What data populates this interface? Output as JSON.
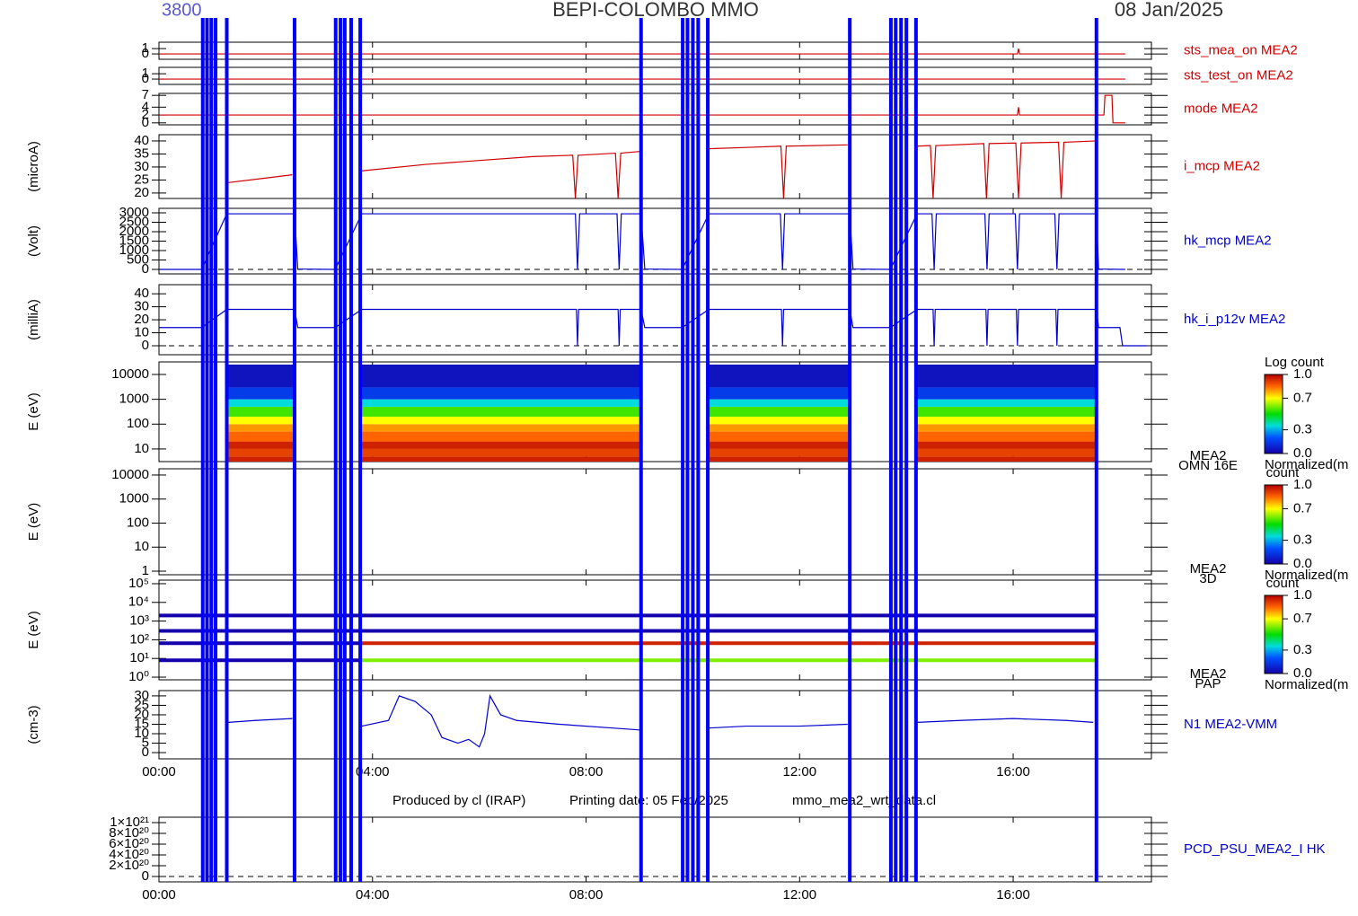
{
  "header": {
    "id": "3800",
    "title": "BEPI-COLOMBO MMO",
    "date": "08 Jan/2025"
  },
  "footer": [
    "Produced by cl (IRAP)",
    "Printing date: 05 Feb/2025",
    "mmo_mea2_wrt_data.cl"
  ],
  "time_axis": {
    "xlim": [
      0,
      18.59
    ],
    "xticks": [
      {
        "value": 0,
        "label": "00:00"
      },
      {
        "value": 4,
        "label": "04:00"
      },
      {
        "value": 8,
        "label": "08:00"
      },
      {
        "value": 12,
        "label": "12:00"
      },
      {
        "value": 16,
        "label": "16:00"
      }
    ]
  },
  "events": {
    "color": "#0000ff",
    "x": [
      0.82,
      0.9,
      0.98,
      1.06,
      1.27,
      2.54,
      3.31,
      3.4,
      3.48,
      3.6,
      3.77,
      9.03,
      9.81,
      9.9,
      10.0,
      10.1,
      10.28,
      12.94,
      13.71,
      13.8,
      13.9,
      14.0,
      14.18,
      17.56
    ]
  },
  "chart_data": [
    {
      "type": "line",
      "label": "sts_mea_on MEA2",
      "color": "#d00000",
      "ylim": [
        -1,
        2.2
      ],
      "yticks": [
        0,
        1
      ],
      "x": [
        0,
        16.08,
        16.1,
        16.12,
        18.1
      ],
      "values": [
        0,
        0,
        1,
        0,
        0
      ]
    },
    {
      "type": "line",
      "label": "sts_test_on MEA2",
      "color": "#d00000",
      "ylim": [
        -1,
        2.2
      ],
      "yticks": [
        0,
        1
      ],
      "x": [
        0,
        18.1
      ],
      "values": [
        0,
        0
      ]
    },
    {
      "type": "line",
      "label": "mode MEA2",
      "color": "#d00000",
      "ylim": [
        -0.5,
        7.5
      ],
      "yticks": [
        0,
        2,
        4,
        7
      ],
      "x": [
        0,
        16.08,
        16.1,
        16.12,
        17.7,
        17.72,
        17.85,
        17.87,
        18.1
      ],
      "values": [
        2,
        2,
        4,
        2,
        2,
        7,
        7,
        0,
        0
      ]
    },
    {
      "type": "line",
      "ylabel": "(microA)",
      "label": "i_mcp MEA2",
      "color": "#d00000",
      "ylim": [
        17.9,
        42.4
      ],
      "yticks": [
        20,
        25,
        30,
        35,
        40
      ],
      "x": [
        1.3,
        1.9,
        2.5,
        2.6,
        3.8,
        5,
        6,
        7,
        7.75,
        7.8,
        7.85,
        8.55,
        8.6,
        8.65,
        9.03,
        9.1,
        10.3,
        11,
        11.65,
        11.7,
        11.75,
        12.9,
        13.0,
        14.2,
        14.45,
        14.5,
        14.55,
        15.45,
        15.5,
        15.55,
        16.05,
        16.1,
        16.15,
        16.85,
        16.9,
        16.95,
        17.55
      ],
      "values": [
        24,
        25.5,
        27,
        null,
        28.5,
        31,
        32.5,
        34,
        34.5,
        18,
        34.5,
        35.3,
        18,
        35.3,
        36,
        null,
        37,
        37.5,
        38,
        18,
        38,
        38.5,
        null,
        38,
        38.2,
        18,
        38.2,
        39,
        18,
        39,
        39.2,
        18,
        39.2,
        39.5,
        18,
        39.5,
        40
      ]
    },
    {
      "type": "line",
      "ylabel": "(Volt)",
      "label": "hk_mcp MEA2",
      "color": "#0000cc",
      "zero_line": true,
      "ylim": [
        -238,
        3238
      ],
      "yticks": [
        0,
        500,
        1000,
        1500,
        2000,
        2500,
        3000
      ],
      "x": [
        0,
        0.8,
        1.27,
        2.54,
        2.6,
        3.3,
        3.8,
        7.8,
        7.84,
        7.88,
        8.58,
        8.62,
        8.66,
        9.03,
        9.1,
        9.8,
        10.3,
        11.64,
        11.68,
        11.72,
        12.94,
        13.0,
        13.7,
        14.2,
        14.48,
        14.52,
        14.56,
        15.47,
        15.51,
        15.55,
        16.04,
        16.08,
        16.12,
        16.78,
        16.82,
        16.86,
        17.56,
        17.6,
        18.1
      ],
      "values": [
        0,
        0,
        2950,
        2950,
        20,
        0,
        2950,
        2950,
        0,
        2950,
        2950,
        0,
        2950,
        2950,
        20,
        0,
        2950,
        2950,
        0,
        2950,
        2950,
        20,
        0,
        2950,
        2950,
        0,
        2950,
        2950,
        0,
        2950,
        2950,
        0,
        2950,
        2950,
        0,
        2950,
        2950,
        20,
        0
      ]
    },
    {
      "type": "line",
      "ylabel": "(milliA)",
      "label": "hk_i_p12v MEA2",
      "color": "#0000cc",
      "zero_line": true,
      "ylim": [
        -6.9,
        47
      ],
      "yticks": [
        0,
        10,
        20,
        30,
        40
      ],
      "x": [
        0,
        0.8,
        1.27,
        2.54,
        2.6,
        3.3,
        3.8,
        7.82,
        7.84,
        7.86,
        8.6,
        8.62,
        8.64,
        9.03,
        9.1,
        9.8,
        10.3,
        11.66,
        11.68,
        11.7,
        12.94,
        13.0,
        13.7,
        14.2,
        14.5,
        14.52,
        14.54,
        15.49,
        15.51,
        15.53,
        16.06,
        16.08,
        16.1,
        16.8,
        16.82,
        16.84,
        17.56,
        17.6,
        18.0,
        18.05,
        18.5
      ],
      "values": [
        14,
        14,
        28,
        28,
        14,
        14,
        28,
        28,
        0,
        28,
        28,
        0,
        28,
        28,
        14,
        14,
        28,
        28,
        0,
        28,
        28,
        14,
        14,
        28,
        28,
        0,
        28,
        28,
        0,
        28,
        28,
        0,
        28,
        28,
        0,
        28,
        28,
        14,
        14,
        0,
        0
      ]
    },
    {
      "type": "spectrogram",
      "ylabel": "E (eV)",
      "label": [
        "MEA2",
        "OMN 16E"
      ],
      "log": true,
      "ylim": [
        3.1,
        32000
      ],
      "yticks": [
        10,
        100,
        1000,
        10000
      ],
      "energy_bins": [
        3.1,
        5,
        10,
        20,
        50,
        100,
        200,
        500,
        1000,
        3000,
        25000
      ],
      "z": [
        0.95,
        0.9,
        0.95,
        0.85,
        0.8,
        0.7,
        0.55,
        0.35,
        0.15,
        0.05
      ],
      "intervals": [
        [
          1.27,
          2.54
        ],
        [
          3.77,
          9.03
        ],
        [
          10.28,
          12.94
        ],
        [
          14.18,
          17.56
        ]
      ],
      "colorbar": {
        "title": [
          "Log count"
        ],
        "ticks": [
          {
            "value": 0,
            "label": "0.0"
          },
          {
            "value": 0.3,
            "label": "0.3"
          },
          {
            "value": 0.7,
            "label": "0.7"
          },
          {
            "value": 1,
            "label": "1.0"
          }
        ]
      }
    },
    {
      "type": "spectrogram",
      "ylabel": "E (eV)",
      "label": [
        "MEA2",
        "3D"
      ],
      "log": true,
      "ylim": [
        0.71,
        18200
      ],
      "yticks": [
        1,
        10,
        100,
        1000,
        10000
      ],
      "colorbar": {
        "title": [
          "Normalized(m",
          "count"
        ],
        "ticks": [
          {
            "value": 0,
            "label": "0.0"
          },
          {
            "value": 0.3,
            "label": "0.3"
          },
          {
            "value": 0.7,
            "label": "0.7"
          },
          {
            "value": 1,
            "label": "1.0"
          }
        ]
      }
    },
    {
      "type": "bands",
      "ylabel": "E (eV)",
      "label": [
        "MEA2",
        "PAP"
      ],
      "note": "Normalized(m",
      "log": true,
      "ylim": [
        0.72,
        155000
      ],
      "yticks": [
        {
          "value": 1,
          "label": "10⁰"
        },
        {
          "value": 10,
          "label": "10¹"
        },
        {
          "value": 100,
          "label": "10²"
        },
        {
          "value": 1000,
          "label": "10³"
        },
        {
          "value": 10000,
          "label": "10⁴"
        },
        {
          "value": 100000,
          "label": "10⁵"
        }
      ],
      "energies": [
        8,
        65,
        300,
        2000
      ],
      "segments": [
        {
          "x": [
            0,
            3.77
          ],
          "z": [
            0,
            0,
            0,
            0
          ]
        },
        {
          "x": [
            3.77,
            17.56
          ],
          "z": [
            0.6,
            0.95,
            0,
            0
          ]
        }
      ],
      "colorbar": {
        "title": [
          "Normalized(m",
          "count"
        ],
        "ticks": [
          {
            "value": 0,
            "label": "0.0"
          },
          {
            "value": 0.3,
            "label": "0.3"
          },
          {
            "value": 0.7,
            "label": "0.7"
          },
          {
            "value": 1,
            "label": "1.0"
          }
        ]
      }
    },
    {
      "type": "line",
      "ylabel": "(cm-3)",
      "label": "N1 MEA2-VMM",
      "color": "#0000cc",
      "xaxis": true,
      "ylim": [
        -3.3,
        32.8
      ],
      "yticks": [
        0,
        5,
        10,
        15,
        20,
        25,
        30
      ],
      "x": [
        1.3,
        1.8,
        2.5,
        2.6,
        3.8,
        4.3,
        4.5,
        4.8,
        5.1,
        5.3,
        5.6,
        5.8,
        6.0,
        6.1,
        6.2,
        6.4,
        6.7,
        7.5,
        8.5,
        9.0,
        9.1,
        10.3,
        11,
        12,
        12.9,
        13.0,
        14.2,
        15,
        16,
        17,
        17.5
      ],
      "values": [
        16,
        17,
        18,
        null,
        14,
        17,
        30,
        27,
        20,
        8,
        5,
        7,
        3,
        10,
        30,
        20,
        17,
        15,
        13,
        12,
        null,
        13,
        14,
        14,
        15,
        null,
        16,
        17,
        18,
        17,
        16
      ]
    },
    {
      "type": "line",
      "label": "PCD_PSU_MEA2_I HK",
      "color": "#0000cc",
      "zero_line": true,
      "xaxis": true,
      "ylim": [
        -1e+20,
        1.1e+21
      ],
      "yticks": [
        0,
        {
          "value": 2e+20,
          "label": "2×10²⁰"
        },
        {
          "value": 4e+20,
          "label": "4×10²⁰"
        },
        {
          "value": 6e+20,
          "label": "6×10²⁰"
        },
        {
          "value": 8e+20,
          "label": "8×10²⁰"
        },
        {
          "value": 1e+21,
          "label": "1×10²¹"
        }
      ],
      "x": [],
      "values": []
    }
  ]
}
